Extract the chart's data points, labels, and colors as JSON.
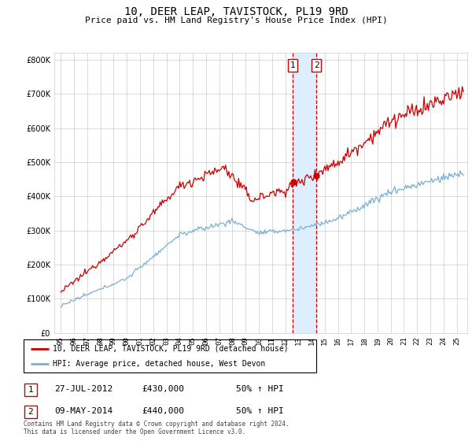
{
  "title": "10, DEER LEAP, TAVISTOCK, PL19 9RD",
  "subtitle": "Price paid vs. HM Land Registry's House Price Index (HPI)",
  "ytick_values": [
    0,
    100000,
    200000,
    300000,
    400000,
    500000,
    600000,
    700000,
    800000
  ],
  "ylim": [
    0,
    820000
  ],
  "sale1_year": 2012.57,
  "sale1_price": 430000,
  "sale2_year": 2014.36,
  "sale2_price": 440000,
  "legend_line1": "10, DEER LEAP, TAVISTOCK, PL19 9RD (detached house)",
  "legend_line2": "HPI: Average price, detached house, West Devon",
  "table_row1": [
    "1",
    "27-JUL-2012",
    "£430,000",
    "50% ↑ HPI"
  ],
  "table_row2": [
    "2",
    "09-MAY-2014",
    "£440,000",
    "50% ↑ HPI"
  ],
  "footnote": "Contains HM Land Registry data © Crown copyright and database right 2024.\nThis data is licensed under the Open Government Licence v3.0.",
  "hpi_color": "#7bafd4",
  "price_color": "#cc0000",
  "highlight_color": "#ddeeff",
  "background_color": "#ffffff",
  "grid_color": "#cccccc"
}
